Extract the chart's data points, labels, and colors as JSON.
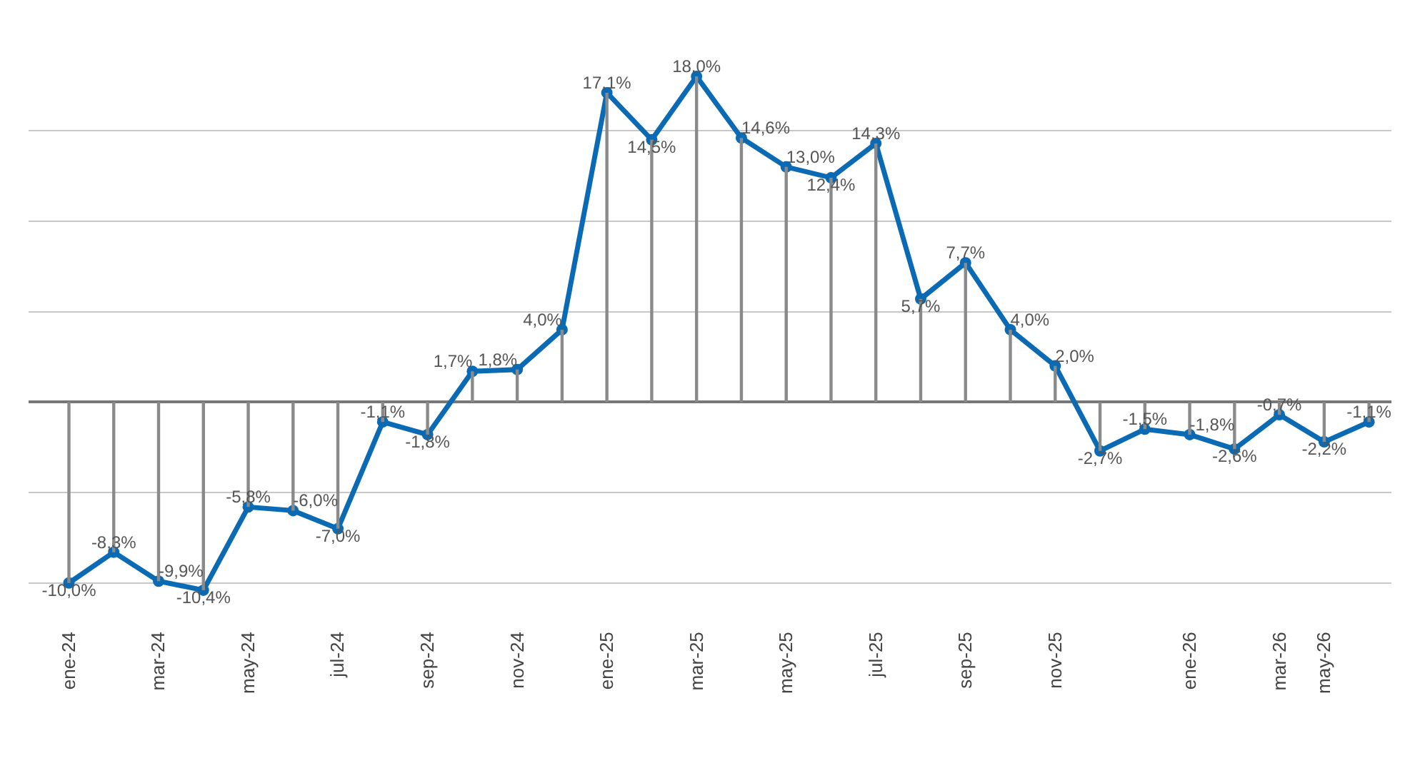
{
  "chart_data": {
    "type": "line",
    "categories": [
      "ene-24",
      null,
      "mar-24",
      null,
      "may-24",
      null,
      "jul-24",
      null,
      "sep-24",
      null,
      "nov-24",
      null,
      "ene-25",
      null,
      "mar-25",
      null,
      "may-25",
      null,
      "jul-25",
      null,
      "sep-25",
      null,
      "nov-25",
      null,
      null,
      "ene-26",
      null,
      "mar-26",
      "may-26",
      null
    ],
    "series": [
      {
        "type": "bar",
        "color": "#8a8a8a",
        "values": [
          -10.0,
          -8.3,
          -9.9,
          -10.4,
          -5.8,
          -6.0,
          -7.0,
          -1.1,
          -1.8,
          1.7,
          1.8,
          4.0,
          17.1,
          14.5,
          18.0,
          14.6,
          13.0,
          12.4,
          14.3,
          5.7,
          7.7,
          4.0,
          2.0,
          -2.7,
          -1.5,
          -1.8,
          -2.6,
          -0.7,
          -2.2,
          -1.1
        ]
      },
      {
        "color": "#0a6ab4",
        "values": [
          -10.0,
          -8.3,
          -9.9,
          -10.4,
          -5.8,
          -6.0,
          -7.0,
          -1.1,
          -1.8,
          1.7,
          1.8,
          4.0,
          17.1,
          14.5,
          18.0,
          14.6,
          13.0,
          12.4,
          14.3,
          5.7,
          7.7,
          4.0,
          2.0,
          -2.7,
          -1.5,
          -1.8,
          -2.6,
          -0.7,
          -2.2,
          -1.1
        ],
        "value_labels": [
          "-10,0%",
          "-8,3%",
          "-9,9%",
          "-10,4%",
          "-5,8%",
          "-6,0%",
          "-7,0%",
          "-1,1%",
          "-1,8%",
          "1,7%",
          "1,8%",
          "4,0%",
          "17,1%",
          "14,5%",
          "18,0%",
          "14,6%",
          "13,0%",
          "12,4%",
          "14,3%",
          "5,7%",
          "7,7%",
          "4,0%",
          "2,0%",
          "-2,7%",
          "-1,5%",
          "-1,8%",
          "-2,6%",
          "-0,7%",
          "-2,2%",
          "-1,1%"
        ]
      }
    ],
    "marker": "circle",
    "line_style": "solid",
    "yticks": [
      {
        "value": -10,
        "label": null
      },
      {
        "value": -5,
        "label": null
      },
      {
        "value": 0,
        "label": null
      },
      {
        "value": 5,
        "label": null
      },
      {
        "value": 10,
        "label": null
      },
      {
        "value": 15,
        "label": null
      }
    ],
    "grid": "y",
    "tick_labels": "x"
  }
}
